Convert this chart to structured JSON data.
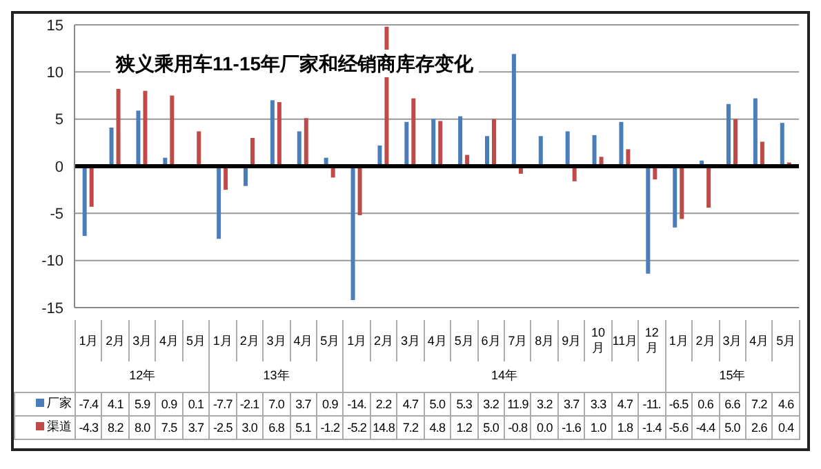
{
  "chart_data": {
    "type": "bar",
    "title": "狭义乘用车11-15年厂家和经销商库存变化",
    "categories": [
      "1月",
      "2月",
      "3月",
      "4月",
      "5月",
      "1月",
      "2月",
      "3月",
      "4月",
      "5月",
      "1月",
      "2月",
      "3月",
      "4月",
      "5月",
      "6月",
      "7月",
      "8月",
      "9月",
      "10月",
      "11月",
      "12月",
      "1月",
      "2月",
      "3月",
      "4月",
      "5月"
    ],
    "annotations": [
      "12年",
      "13年",
      "14年",
      "15年"
    ],
    "series": [
      {
        "name": "厂家",
        "color": "#4a7ebb",
        "values": [
          -7.4,
          4.1,
          5.9,
          0.9,
          0.1,
          -7.7,
          -2.1,
          7.0,
          3.7,
          0.9,
          -14.2,
          2.2,
          4.7,
          5.0,
          5.3,
          3.2,
          11.9,
          3.2,
          3.7,
          3.3,
          4.7,
          -11.4,
          -6.5,
          0.6,
          6.6,
          7.2,
          4.6
        ],
        "value_labels": [
          "-7.4",
          "4.1",
          "5.9",
          "0.9",
          "0.1",
          "-7.7",
          "-2.1",
          "7.0",
          "3.7",
          "0.9",
          "-14.",
          "2.2",
          "4.7",
          "5.0",
          "5.3",
          "3.2",
          "11.9",
          "3.2",
          "3.7",
          "3.3",
          "4.7",
          "-11.",
          "-6.5",
          "0.6",
          "6.6",
          "7.2",
          "4.6"
        ]
      },
      {
        "name": "渠道",
        "color": "#be4b48",
        "values": [
          -4.3,
          8.2,
          8.0,
          7.5,
          3.7,
          -2.5,
          3.0,
          6.8,
          5.1,
          -1.2,
          -5.2,
          14.8,
          7.2,
          4.8,
          1.2,
          5.0,
          -0.8,
          0.0,
          -1.6,
          1.0,
          1.8,
          -1.4,
          -5.6,
          -4.4,
          5.0,
          2.6,
          0.4
        ],
        "value_labels": [
          "-4.3",
          "8.2",
          "8.0",
          "7.5",
          "3.7",
          "-2.5",
          "3.0",
          "6.8",
          "5.1",
          "-1.2",
          "-5.2",
          "14.8",
          "7.2",
          "4.8",
          "1.2",
          "5.0",
          "-0.8",
          "0.0",
          "-1.6",
          "1.0",
          "1.8",
          "-1.4",
          "-5.6",
          "-4.4",
          "5.0",
          "2.6",
          "0.4"
        ]
      }
    ],
    "ylim": [
      -15,
      15
    ],
    "yticks": [
      -15,
      -10,
      -5,
      0,
      5,
      10,
      15
    ],
    "ref_lines": [
      {
        "axis": "y",
        "value": 0,
        "color": "#000000"
      }
    ],
    "grid": "y",
    "legend": "bottom"
  }
}
